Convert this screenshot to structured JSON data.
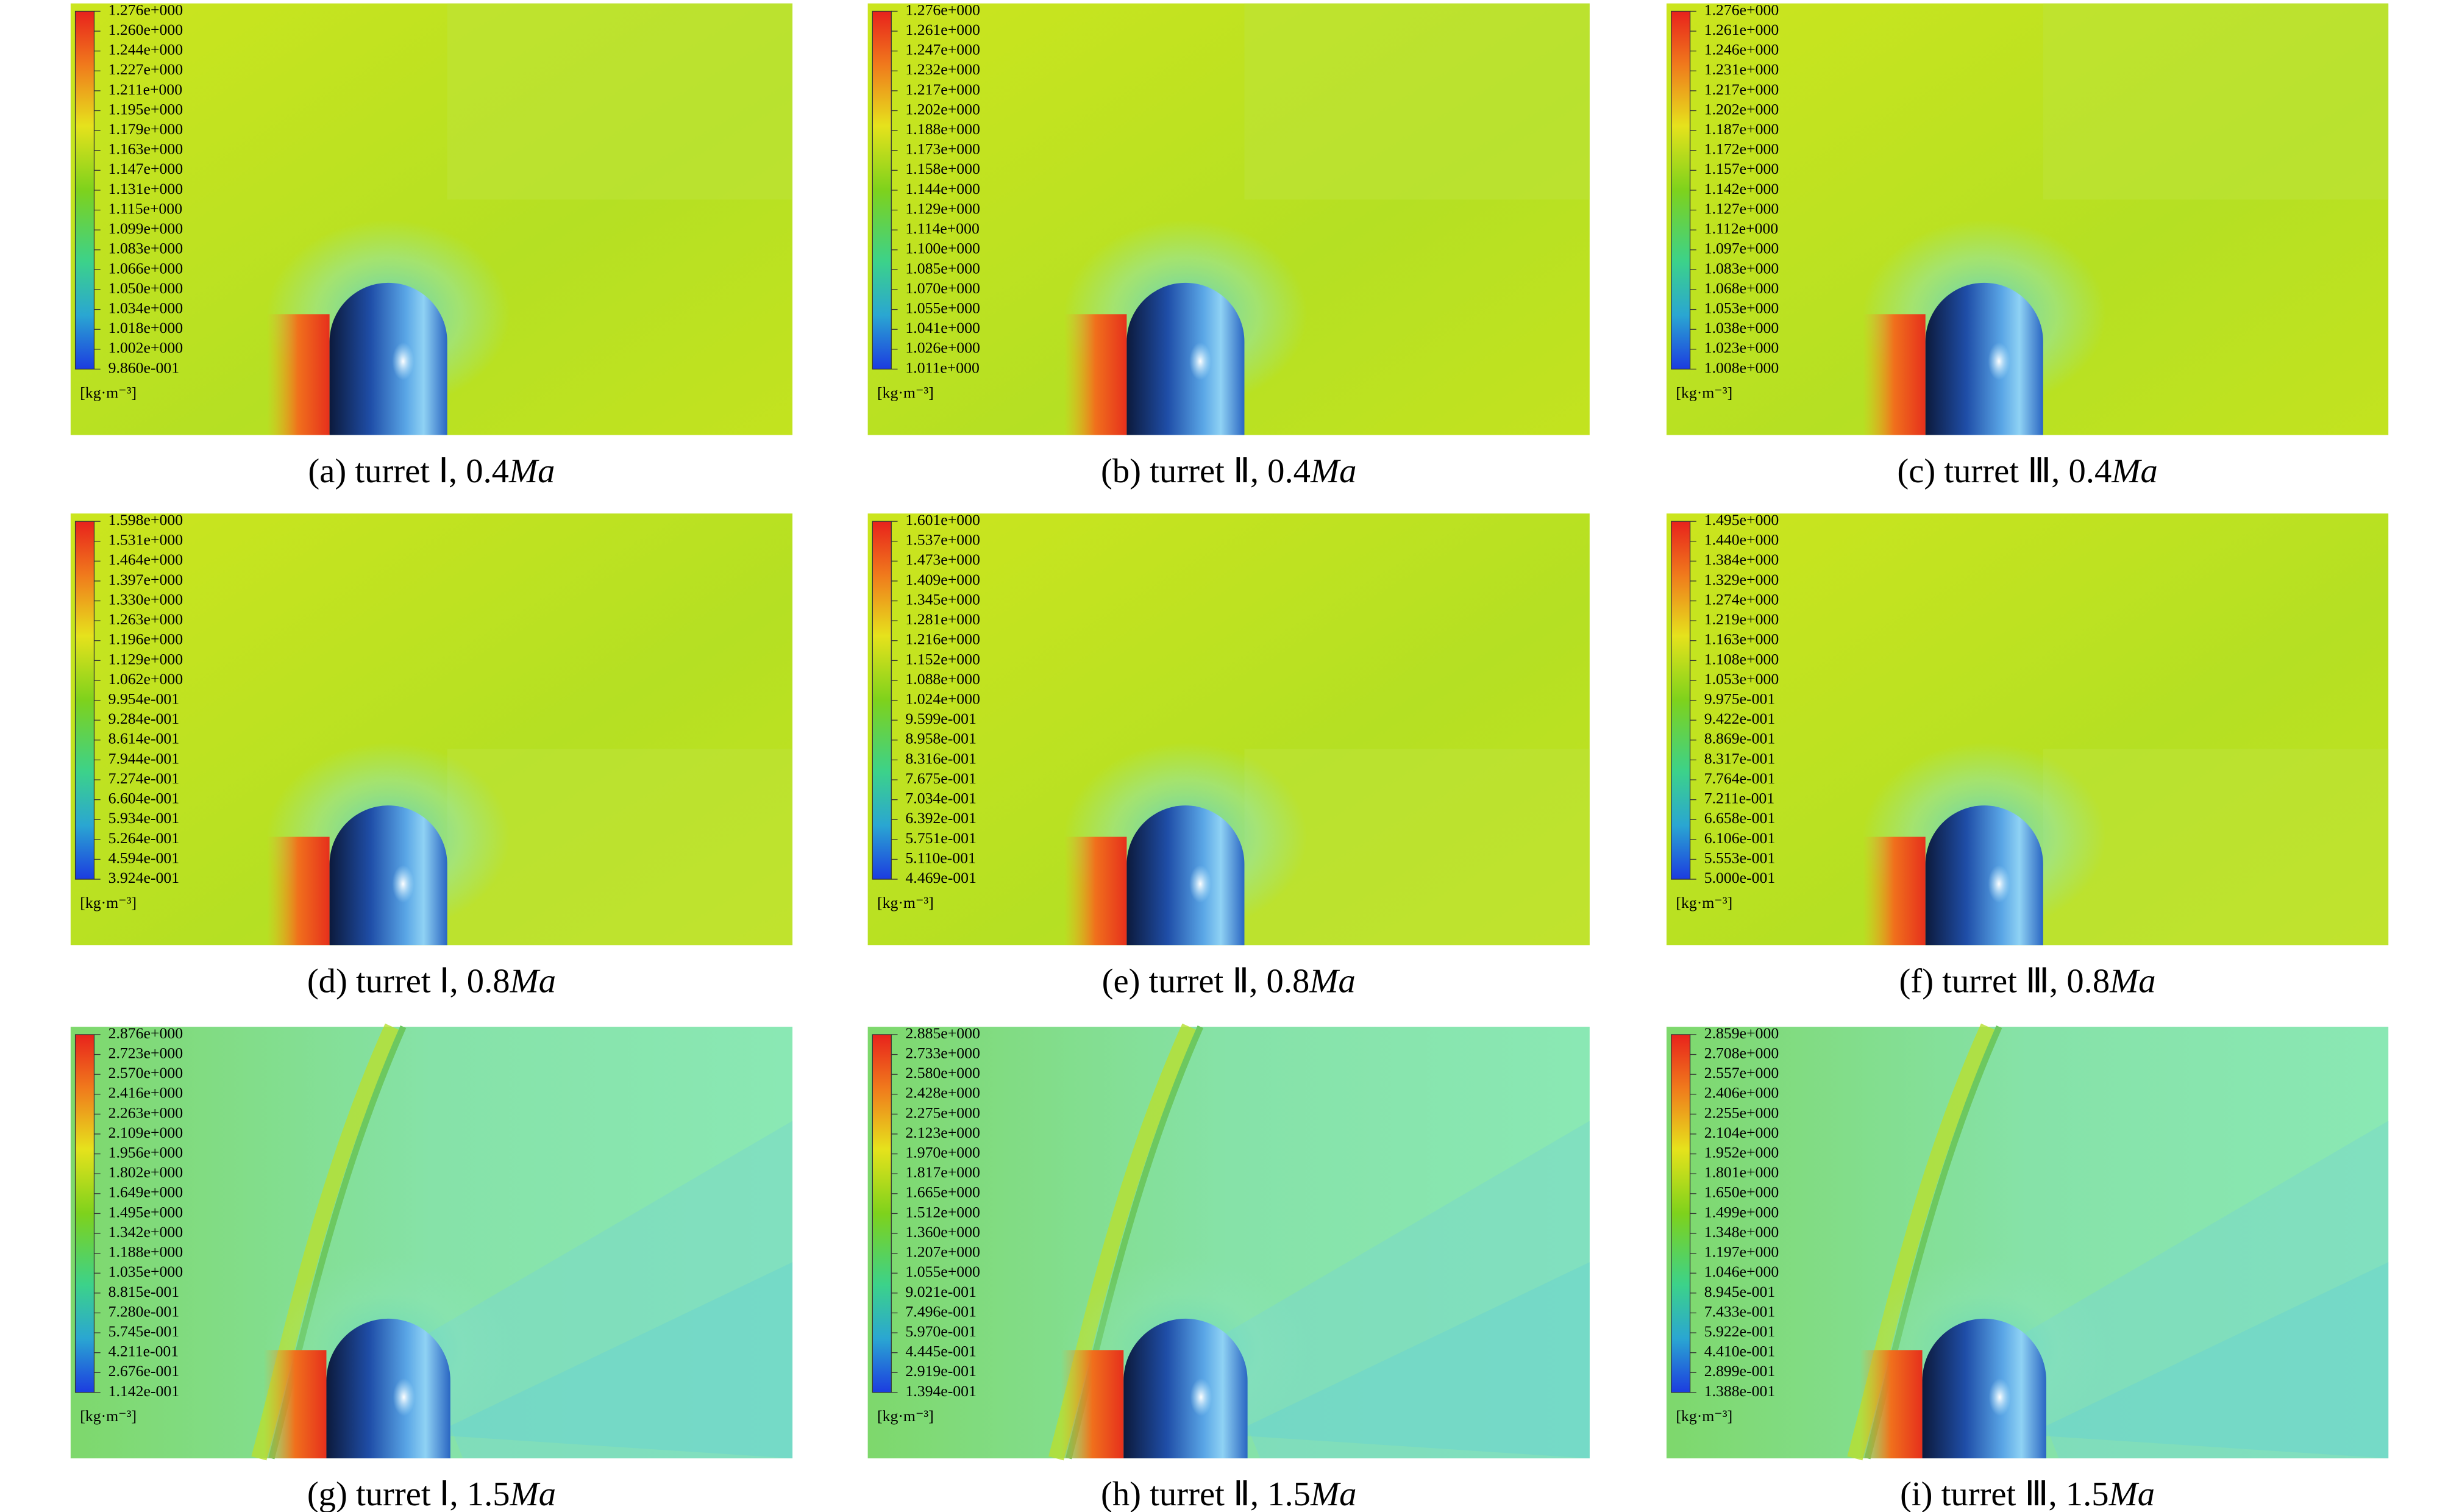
{
  "unit": "[kg·m⁻³]",
  "panels": [
    {
      "caption": [
        "(a) turret Ⅰ, 0.4",
        "Ma"
      ],
      "colorbar": [
        "1.276e+000",
        "1.260e+000",
        "1.244e+000",
        "1.227e+000",
        "1.211e+000",
        "1.195e+000",
        "1.179e+000",
        "1.163e+000",
        "1.147e+000",
        "1.131e+000",
        "1.115e+000",
        "1.099e+000",
        "1.083e+000",
        "1.066e+000",
        "1.050e+000",
        "1.034e+000",
        "1.018e+000",
        "1.002e+000",
        "9.860e-001"
      ]
    },
    {
      "caption": [
        "(b) turret Ⅱ, 0.4",
        "Ma"
      ],
      "colorbar": [
        "1.276e+000",
        "1.261e+000",
        "1.247e+000",
        "1.232e+000",
        "1.217e+000",
        "1.202e+000",
        "1.188e+000",
        "1.173e+000",
        "1.158e+000",
        "1.144e+000",
        "1.129e+000",
        "1.114e+000",
        "1.100e+000",
        "1.085e+000",
        "1.070e+000",
        "1.055e+000",
        "1.041e+000",
        "1.026e+000",
        "1.011e+000"
      ]
    },
    {
      "caption": [
        "(c) turret Ⅲ, 0.4",
        "Ma"
      ],
      "colorbar": [
        "1.276e+000",
        "1.261e+000",
        "1.246e+000",
        "1.231e+000",
        "1.217e+000",
        "1.202e+000",
        "1.187e+000",
        "1.172e+000",
        "1.157e+000",
        "1.142e+000",
        "1.127e+000",
        "1.112e+000",
        "1.097e+000",
        "1.083e+000",
        "1.068e+000",
        "1.053e+000",
        "1.038e+000",
        "1.023e+000",
        "1.008e+000"
      ]
    },
    {
      "caption": [
        "(d) turret Ⅰ, 0.8",
        "Ma"
      ],
      "colorbar": [
        "1.598e+000",
        "1.531e+000",
        "1.464e+000",
        "1.397e+000",
        "1.330e+000",
        "1.263e+000",
        "1.196e+000",
        "1.129e+000",
        "1.062e+000",
        "9.954e-001",
        "9.284e-001",
        "8.614e-001",
        "7.944e-001",
        "7.274e-001",
        "6.604e-001",
        "5.934e-001",
        "5.264e-001",
        "4.594e-001",
        "3.924e-001"
      ]
    },
    {
      "caption": [
        "(e) turret Ⅱ, 0.8",
        "Ma"
      ],
      "colorbar": [
        "1.601e+000",
        "1.537e+000",
        "1.473e+000",
        "1.409e+000",
        "1.345e+000",
        "1.281e+000",
        "1.216e+000",
        "1.152e+000",
        "1.088e+000",
        "1.024e+000",
        "9.599e-001",
        "8.958e-001",
        "8.316e-001",
        "7.675e-001",
        "7.034e-001",
        "6.392e-001",
        "5.751e-001",
        "5.110e-001",
        "4.469e-001"
      ]
    },
    {
      "caption": [
        "(f) turret Ⅲ, 0.8",
        "Ma"
      ],
      "colorbar": [
        "1.495e+000",
        "1.440e+000",
        "1.384e+000",
        "1.329e+000",
        "1.274e+000",
        "1.219e+000",
        "1.163e+000",
        "1.108e+000",
        "1.053e+000",
        "9.975e-001",
        "9.422e-001",
        "8.869e-001",
        "8.317e-001",
        "7.764e-001",
        "7.211e-001",
        "6.658e-001",
        "6.106e-001",
        "5.553e-001",
        "5.000e-001"
      ]
    },
    {
      "caption": [
        "(g) turret Ⅰ, 1.5",
        "Ma"
      ],
      "colorbar": [
        "2.876e+000",
        "2.723e+000",
        "2.570e+000",
        "2.416e+000",
        "2.263e+000",
        "2.109e+000",
        "1.956e+000",
        "1.802e+000",
        "1.649e+000",
        "1.495e+000",
        "1.342e+000",
        "1.188e+000",
        "1.035e+000",
        "8.815e-001",
        "7.280e-001",
        "5.745e-001",
        "4.211e-001",
        "2.676e-001",
        "1.142e-001"
      ]
    },
    {
      "caption": [
        "(h) turret Ⅱ, 1.5",
        "Ma"
      ],
      "colorbar": [
        "2.885e+000",
        "2.733e+000",
        "2.580e+000",
        "2.428e+000",
        "2.275e+000",
        "2.123e+000",
        "1.970e+000",
        "1.817e+000",
        "1.665e+000",
        "1.512e+000",
        "1.360e+000",
        "1.207e+000",
        "1.055e+000",
        "9.021e-001",
        "7.496e-001",
        "5.970e-001",
        "4.445e-001",
        "2.919e-001",
        "1.394e-001"
      ]
    },
    {
      "caption": [
        "(i) turret Ⅲ, 1.5",
        "Ma"
      ],
      "colorbar": [
        "2.859e+000",
        "2.708e+000",
        "2.557e+000",
        "2.406e+000",
        "2.255e+000",
        "2.104e+000",
        "1.952e+000",
        "1.801e+000",
        "1.650e+000",
        "1.499e+000",
        "1.348e+000",
        "1.197e+000",
        "1.046e+000",
        "8.945e-001",
        "7.433e-001",
        "5.922e-001",
        "4.410e-001",
        "2.899e-001",
        "1.388e-001"
      ]
    }
  ]
}
